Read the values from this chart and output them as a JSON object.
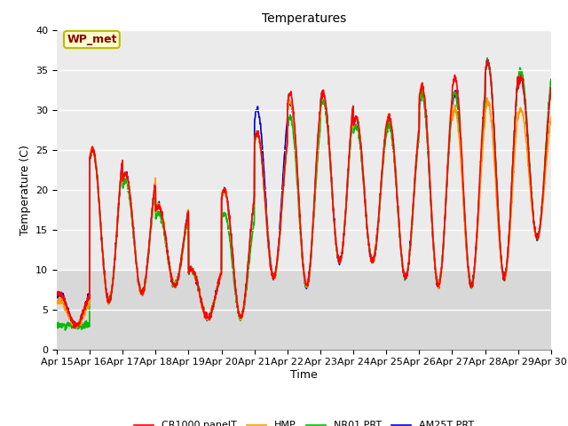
{
  "title": "Temperatures",
  "ylabel": "Temperature (C)",
  "xlabel": "Time",
  "ylim": [
    0,
    40
  ],
  "bg_color_upper": "#ebebeb",
  "bg_color_lower": "#d8d8d8",
  "fig_color": "#ffffff",
  "annotation_text": "WP_met",
  "annotation_bg": "#ffffcc",
  "annotation_edge": "#bbbb00",
  "annotation_text_color": "#880000",
  "legend_entries": [
    "CR1000 panelT",
    "HMP",
    "NR01 PRT",
    "AM25T PRT"
  ],
  "line_colors": [
    "#ff0000",
    "#ff9900",
    "#00bb00",
    "#0000cc"
  ],
  "x_tick_labels": [
    "Apr 15",
    "Apr 16",
    "Apr 17",
    "Apr 18",
    "Apr 19",
    "Apr 20",
    "Apr 21",
    "Apr 22",
    "Apr 23",
    "Apr 24",
    "Apr 25",
    "Apr 26",
    "Apr 27",
    "Apr 28",
    "Apr 29",
    "Apr 30"
  ],
  "day_mins": [
    3,
    6,
    7,
    8,
    4,
    4,
    9,
    8,
    11,
    11,
    9,
    8,
    8,
    9,
    14
  ],
  "day_maxs_cr": [
    7,
    25,
    22,
    18,
    10,
    20,
    27,
    32,
    32,
    29,
    29,
    33,
    34,
    36,
    34
  ],
  "day_maxs_hmp": [
    6,
    25,
    22,
    18,
    10,
    20,
    27,
    31,
    32,
    29,
    29,
    33,
    30,
    31,
    30
  ],
  "day_maxs_nr01": [
    3,
    25,
    21,
    17,
    10,
    17,
    27,
    29,
    31,
    28,
    28,
    32,
    32,
    36,
    35
  ],
  "day_maxs_am25": [
    7,
    25,
    22,
    18,
    10,
    20,
    30,
    31,
    32,
    29,
    29,
    32,
    32,
    36,
    34
  ]
}
